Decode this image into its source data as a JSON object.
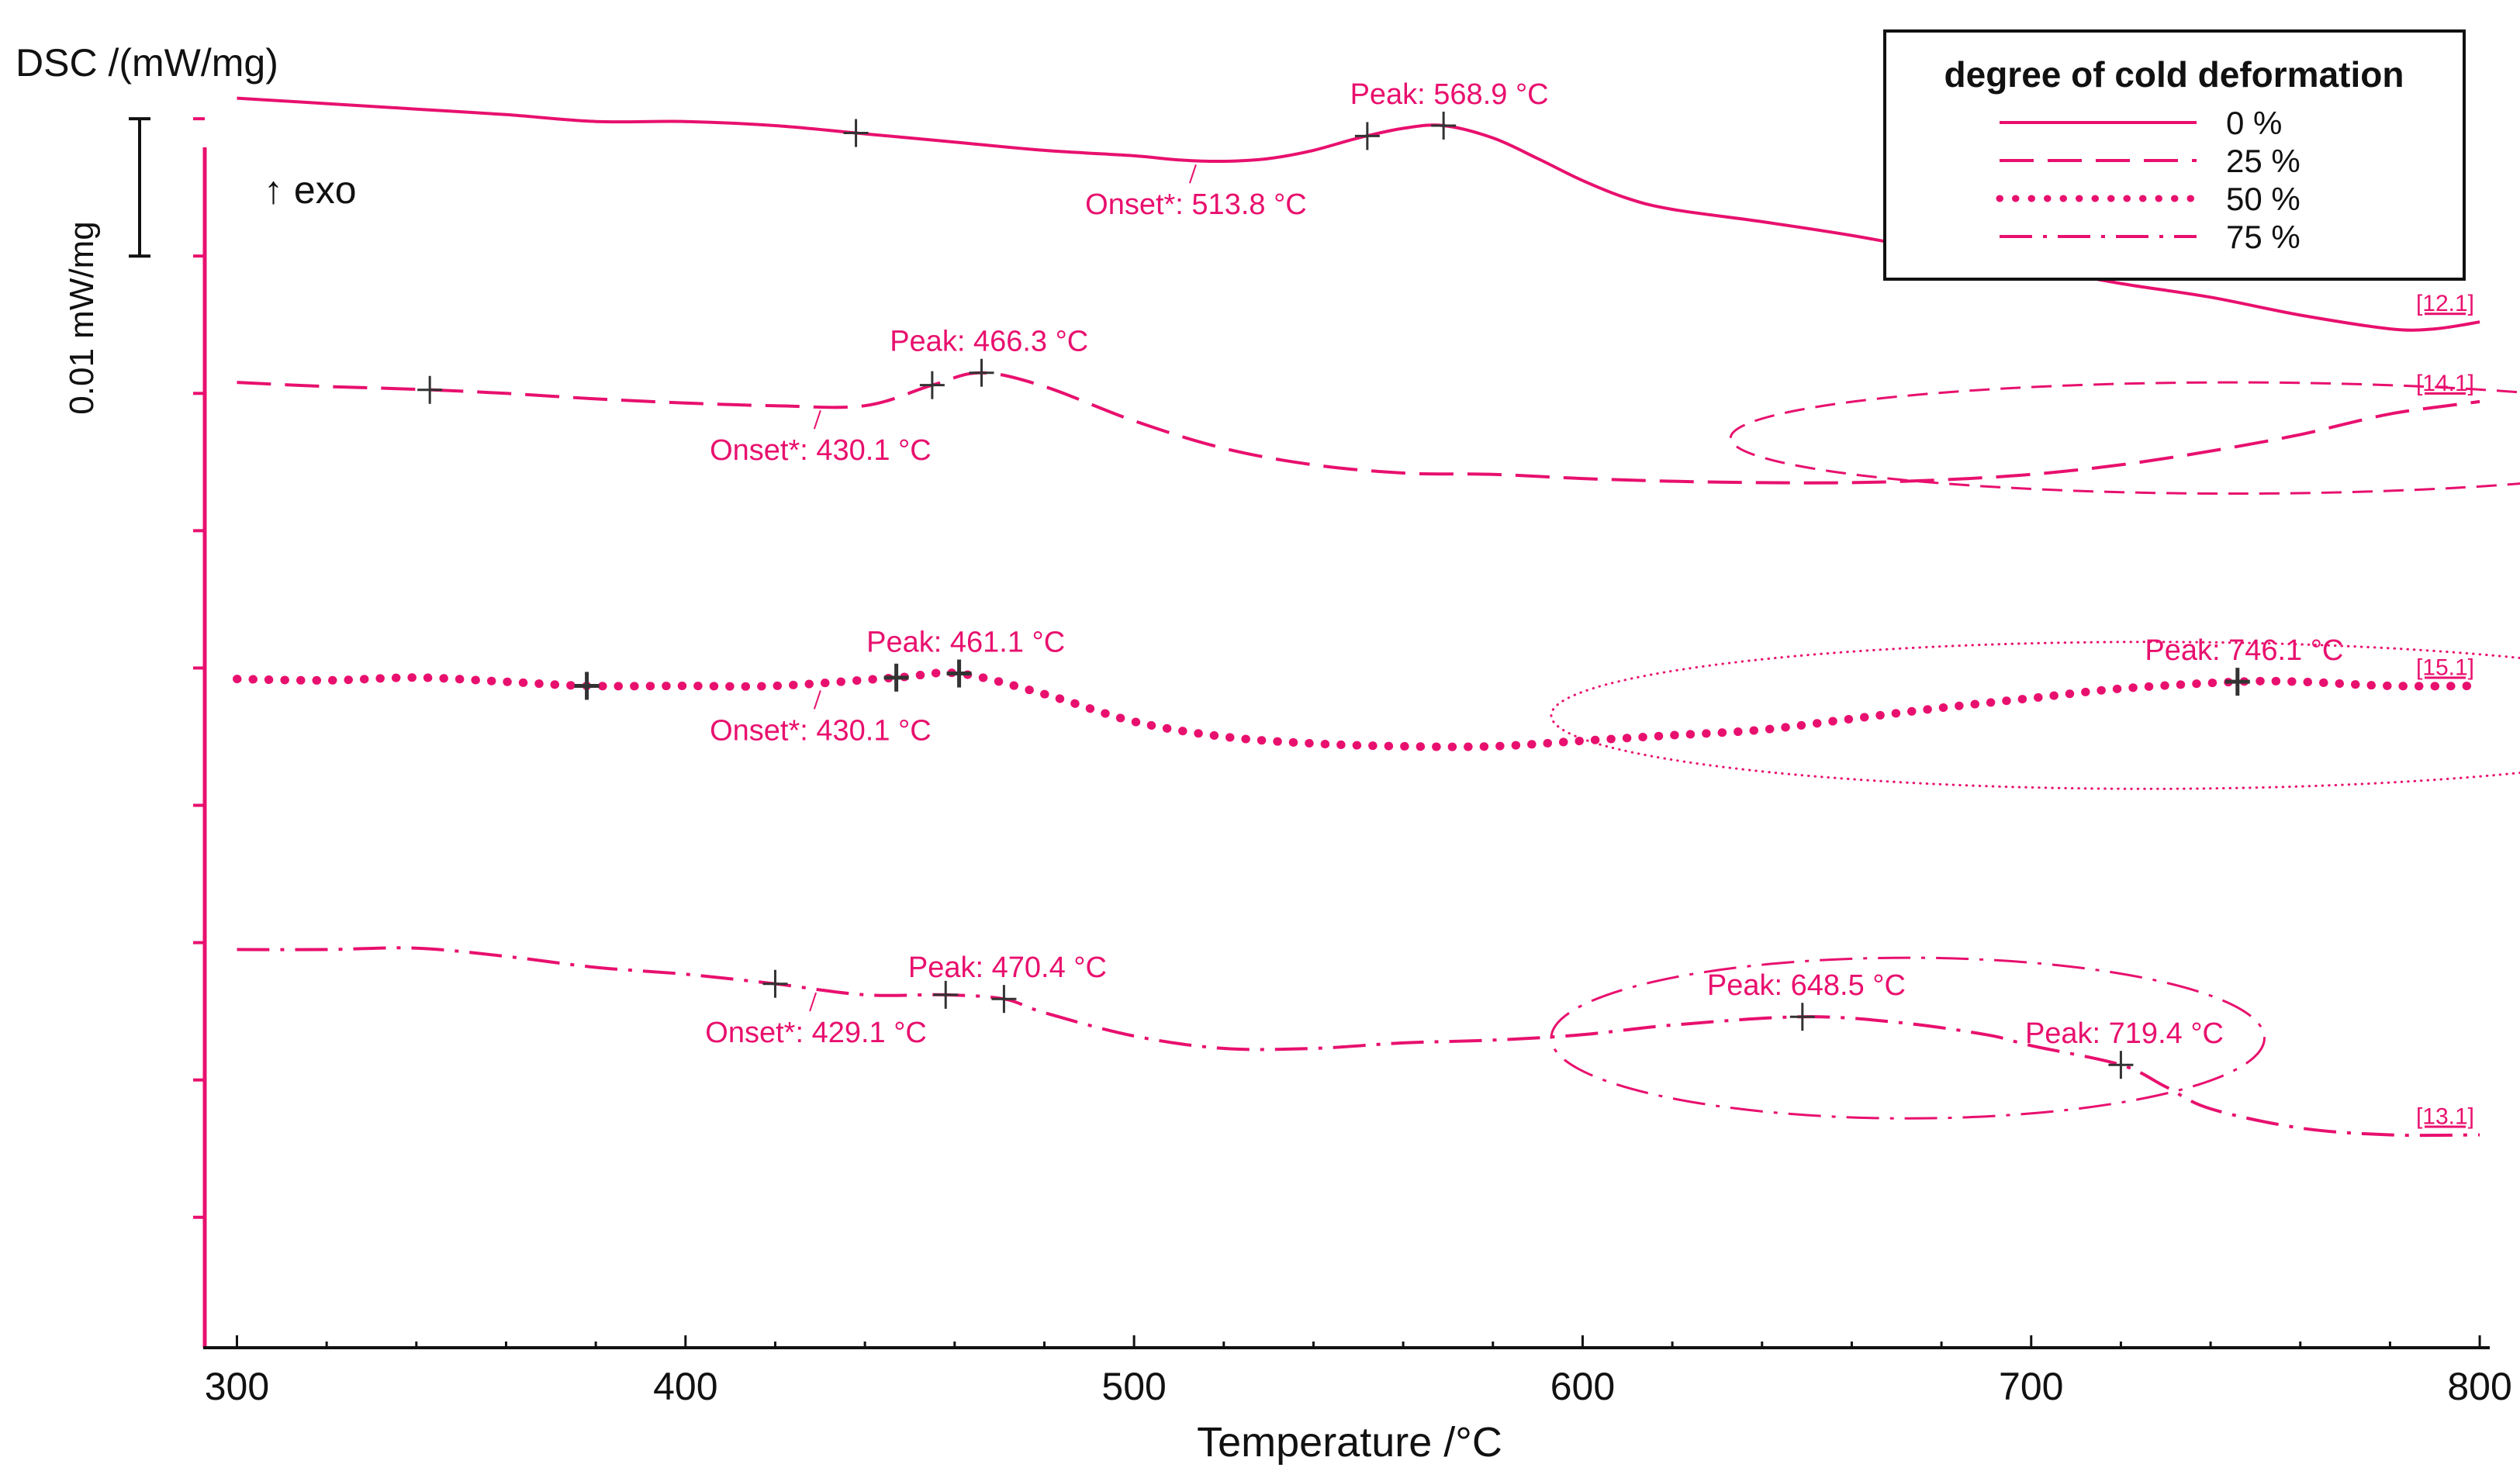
{
  "chart_data": {
    "type": "line",
    "title": "",
    "ylabel": "DSC /(mW/mg)",
    "xlabel": "Temperature /°C",
    "exo_label": "↑ exo",
    "scale_label": "0.01 mW/mg",
    "scale_value": 0.01,
    "xlim": [
      293,
      805
    ],
    "x_ticks": [
      300,
      400,
      500,
      600,
      700,
      800
    ],
    "x_tick_labels": [
      "300",
      "400",
      "500",
      "600",
      "700",
      "800"
    ],
    "y_units": "mW/mg (offset traces)",
    "ylim": [
      0,
      0.0925
    ],
    "y_tick_values": [
      0.0895,
      0.0795,
      0.0695,
      0.0595,
      0.0495,
      0.0395,
      0.0295,
      0.0195,
      0.0095
    ],
    "scale_bar_range": [
      0.0795,
      0.0895
    ],
    "legend": {
      "title": "degree of cold deformation",
      "position": "top-right",
      "entries": [
        {
          "label": "0 %",
          "style": "solid"
        },
        {
          "label": "25 %",
          "style": "dashed"
        },
        {
          "label": "50 %",
          "style": "dotted"
        },
        {
          "label": "75 %",
          "style": "dashdot"
        }
      ]
    },
    "color": "#e8106e",
    "series": [
      {
        "name": "0 %",
        "style": "solid",
        "tag": "[12.1]",
        "x": [
          300,
          320,
          340,
          360,
          380,
          400,
          420,
          440,
          460,
          480,
          500,
          510,
          520,
          530,
          540,
          550,
          560,
          569,
          580,
          590,
          600,
          610,
          620,
          640,
          660,
          680,
          700,
          720,
          740,
          760,
          780,
          790,
          800
        ],
        "y": [
          0.091,
          0.0906,
          0.0902,
          0.0898,
          0.0893,
          0.0893,
          0.089,
          0.0884,
          0.0878,
          0.0872,
          0.0868,
          0.0865,
          0.0864,
          0.0866,
          0.0872,
          0.0881,
          0.0888,
          0.089,
          0.0881,
          0.0866,
          0.085,
          0.0837,
          0.0829,
          0.082,
          0.081,
          0.0798,
          0.0787,
          0.0775,
          0.0765,
          0.0752,
          0.0742,
          0.0742,
          0.0747
        ]
      },
      {
        "name": "25 %",
        "style": "dashed",
        "tag": "[14.1]",
        "x": [
          300,
          320,
          340,
          360,
          380,
          400,
          420,
          440,
          455,
          466,
          480,
          500,
          520,
          540,
          560,
          580,
          600,
          620,
          640,
          660,
          680,
          700,
          720,
          740,
          760,
          780,
          800
        ],
        "y": [
          0.0703,
          0.07,
          0.0698,
          0.0695,
          0.0691,
          0.0688,
          0.0686,
          0.0686,
          0.0701,
          0.071,
          0.07,
          0.0675,
          0.0655,
          0.0643,
          0.0637,
          0.0636,
          0.0633,
          0.0631,
          0.063,
          0.063,
          0.0632,
          0.0636,
          0.0643,
          0.0653,
          0.0665,
          0.068,
          0.0689
        ]
      },
      {
        "name": "50 %",
        "style": "dotted",
        "tag": "[15.1]",
        "x": [
          300,
          320,
          340,
          360,
          378,
          400,
          420,
          447,
          461,
          480,
          500,
          520,
          540,
          560,
          580,
          600,
          620,
          640,
          660,
          680,
          700,
          720,
          746,
          760,
          780,
          800
        ],
        "y": [
          0.0487,
          0.0486,
          0.0488,
          0.0485,
          0.0482,
          0.0482,
          0.0482,
          0.0488,
          0.0491,
          0.0476,
          0.0456,
          0.0445,
          0.044,
          0.0438,
          0.0438,
          0.0442,
          0.0446,
          0.045,
          0.0458,
          0.0466,
          0.0473,
          0.048,
          0.0485,
          0.0485,
          0.0482,
          0.0482
        ]
      },
      {
        "name": "75 %",
        "style": "dashdot",
        "tag": "[13.1]",
        "x": [
          300,
          320,
          340,
          360,
          380,
          400,
          420,
          440,
          458,
          471,
          480,
          500,
          520,
          540,
          560,
          580,
          600,
          620,
          649,
          670,
          690,
          700,
          720,
          730,
          740,
          760,
          780,
          800
        ],
        "y": [
          0.029,
          0.029,
          0.0291,
          0.0285,
          0.0277,
          0.0272,
          0.0265,
          0.0257,
          0.0257,
          0.0254,
          0.0244,
          0.0227,
          0.0218,
          0.0218,
          0.0222,
          0.0224,
          0.0228,
          0.0235,
          0.0241,
          0.0237,
          0.0228,
          0.022,
          0.0206,
          0.019,
          0.0174,
          0.016,
          0.0155,
          0.0155
        ]
      }
    ],
    "markers": [
      {
        "series": "0 %",
        "x": 438
      },
      {
        "series": "0 %",
        "x": 552
      },
      {
        "series": "0 %",
        "x": 569
      },
      {
        "series": "25 %",
        "x": 343
      },
      {
        "series": "25 %",
        "x": 455
      },
      {
        "series": "25 %",
        "x": 466
      },
      {
        "series": "50 %",
        "x": 378
      },
      {
        "series": "50 %",
        "x": 447
      },
      {
        "series": "50 %",
        "x": 461
      },
      {
        "series": "50 %",
        "x": 746
      },
      {
        "series": "75 %",
        "x": 420
      },
      {
        "series": "75 %",
        "x": 458
      },
      {
        "series": "75 %",
        "x": 471
      },
      {
        "series": "75 %",
        "x": 649
      },
      {
        "series": "75 %",
        "x": 720
      }
    ],
    "annotations": [
      {
        "text": "Peak: 568.9 °C",
        "x": 568.9,
        "y": 0.089,
        "kind": "peak"
      },
      {
        "text": "Onset*: 513.8 °C",
        "x": 513.8,
        "y": 0.0865,
        "kind": "onset"
      },
      {
        "text": "Peak: 466.3 °C",
        "x": 466.3,
        "y": 0.071,
        "kind": "peak"
      },
      {
        "text": "Onset*: 430.1 °C",
        "x": 430.1,
        "y": 0.0686,
        "kind": "onset"
      },
      {
        "text": "Peak: 461.1 °C",
        "x": 461.1,
        "y": 0.0491,
        "kind": "peak"
      },
      {
        "text": "Onset*: 430.1 °C",
        "x": 430.1,
        "y": 0.0482,
        "kind": "onset"
      },
      {
        "text": "Peak: 746.1 °C",
        "x": 746.1,
        "y": 0.0485,
        "kind": "peak"
      },
      {
        "text": "Peak: 470.4 °C",
        "x": 470.4,
        "y": 0.0254,
        "kind": "peak"
      },
      {
        "text": "Onset*: 429.1 °C",
        "x": 429.1,
        "y": 0.0262,
        "kind": "onset"
      },
      {
        "text": "Peak: 648.5 °C",
        "x": 648.5,
        "y": 0.0241,
        "kind": "peak"
      },
      {
        "text": "Peak: 719.4 °C",
        "x": 719.4,
        "y": 0.0206,
        "kind": "peak"
      }
    ],
    "highlight_ellipses": [
      {
        "series": "25 %",
        "style": "dashed",
        "x_range": [
          633,
          857
        ],
        "y_range": [
          0.0622,
          0.0703
        ]
      },
      {
        "series": "50 %",
        "style": "dotted",
        "x_range": [
          593,
          859
        ],
        "y_range": [
          0.0407,
          0.0514
        ]
      },
      {
        "series": "75 %",
        "style": "dashdot",
        "x_range": [
          593,
          752
        ],
        "y_range": [
          0.0167,
          0.0284
        ]
      }
    ]
  }
}
